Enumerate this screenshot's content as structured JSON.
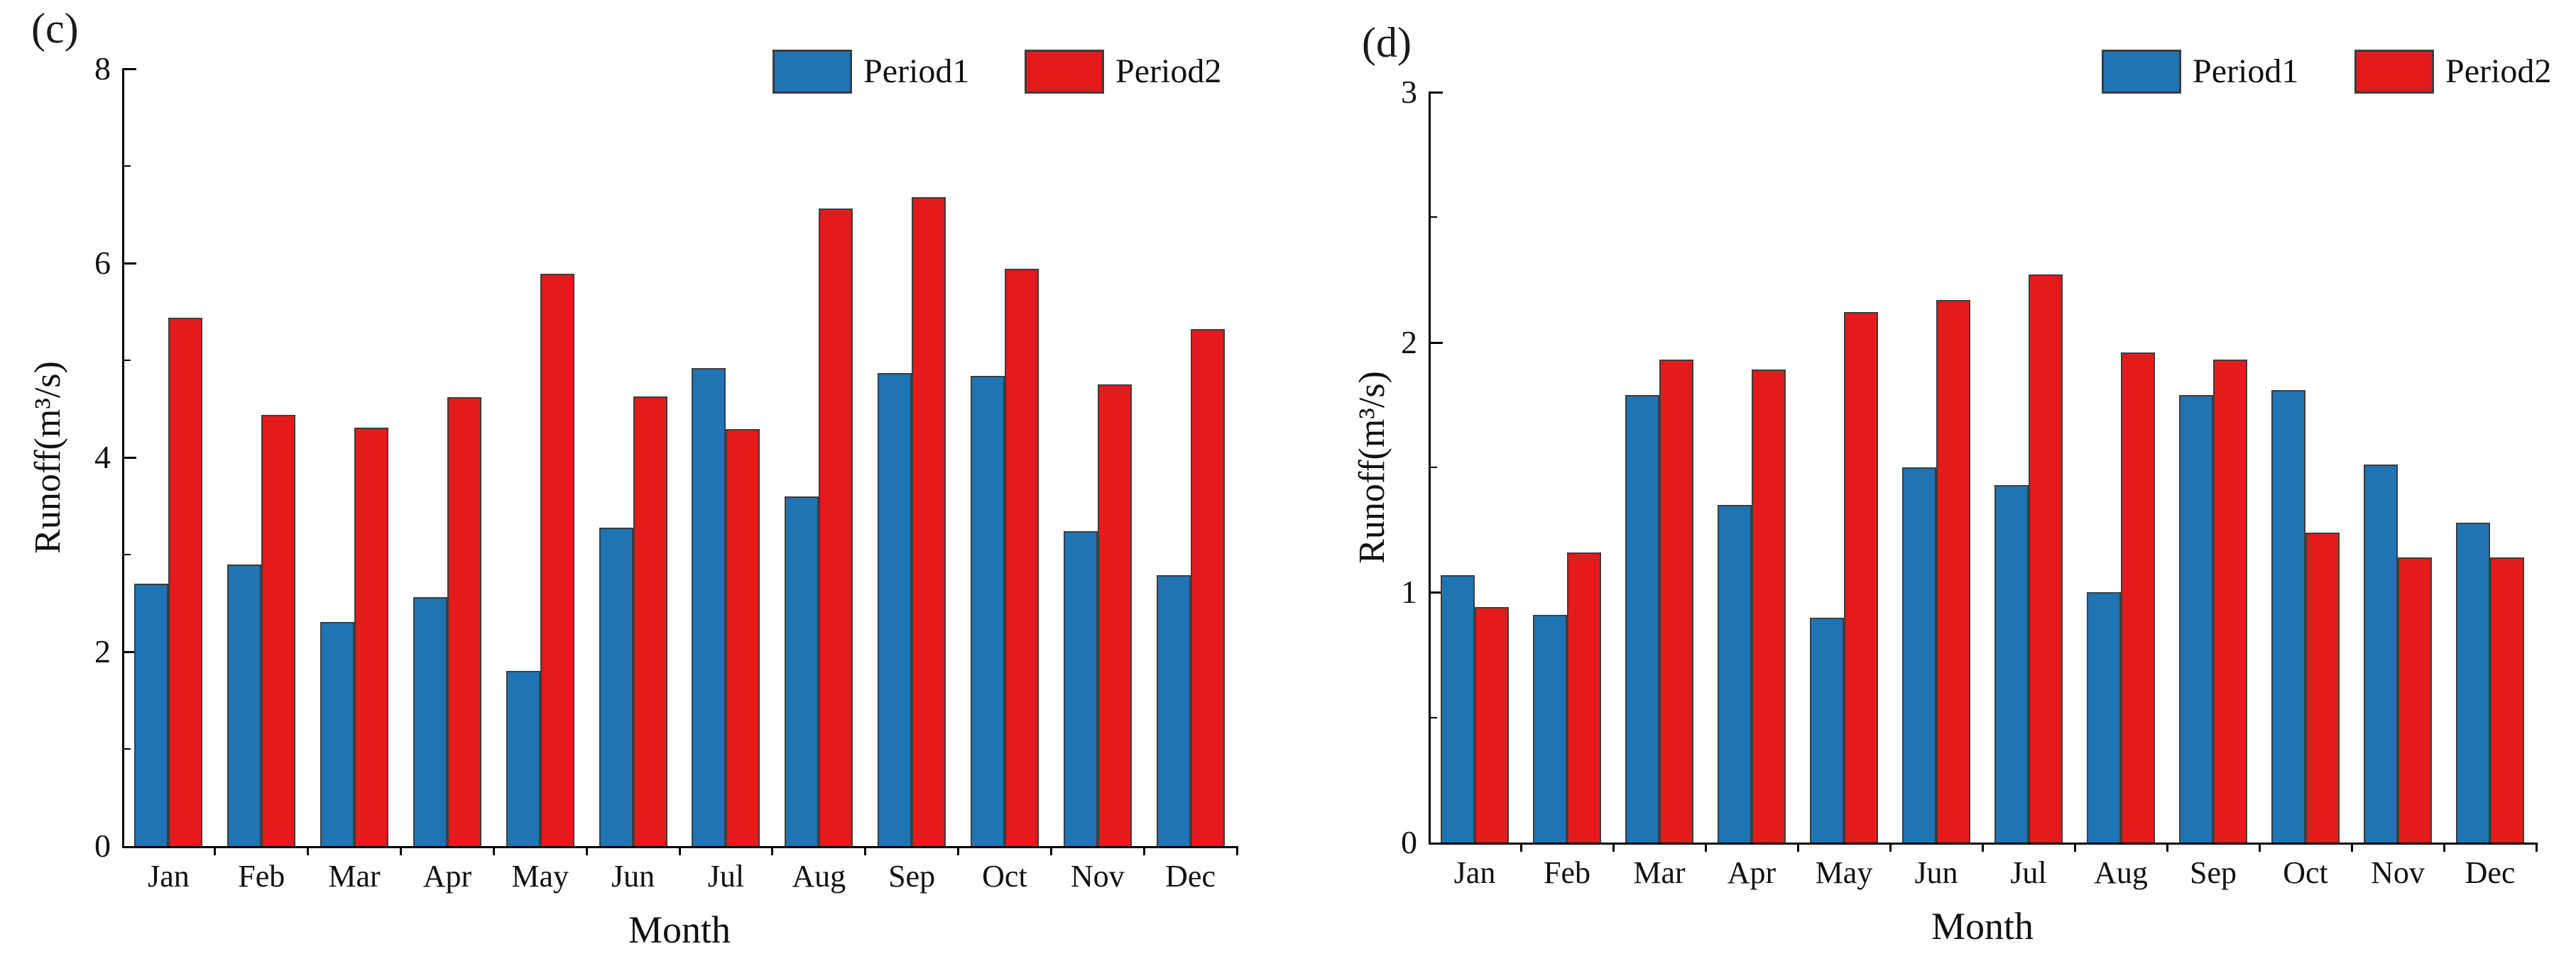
{
  "colors": {
    "period1_fill": "#1F74B4",
    "period2_fill": "#E41A1C",
    "bar_edge": "#3D3D3D",
    "axis": "#000000"
  },
  "panels": [
    {
      "tag": "(c)",
      "ylabel": "Runoff(m³/s)",
      "xlabel": "Month",
      "y_major_ticks": [
        0,
        2,
        4,
        6,
        8
      ],
      "legend": [
        {
          "label": "Period1"
        },
        {
          "label": "Period2"
        }
      ]
    },
    {
      "tag": "(d)",
      "ylabel": "Runoff(m³/s)",
      "xlabel": "Month",
      "y_major_ticks": [
        0,
        1,
        2,
        3
      ],
      "legend": [
        {
          "label": "Period1"
        },
        {
          "label": "Period2"
        }
      ]
    }
  ],
  "chart_data": [
    {
      "type": "bar",
      "panel": "(c)",
      "title": "",
      "xlabel": "Month",
      "ylabel": "Runoff(m³/s)",
      "ylim": [
        0,
        8
      ],
      "y_major_ticks": [
        0,
        2,
        4,
        6,
        8
      ],
      "grid": false,
      "legend_position": "top-right",
      "categories": [
        "Jan",
        "Feb",
        "Mar",
        "Apr",
        "May",
        "Jun",
        "Jul",
        "Aug",
        "Sep",
        "Oct",
        "Nov",
        "Dec"
      ],
      "series": [
        {
          "name": "Period1",
          "color": "#1F74B4",
          "values": [
            2.7,
            2.9,
            2.31,
            2.56,
            1.8,
            3.28,
            4.92,
            3.6,
            4.87,
            4.84,
            3.24,
            2.79
          ]
        },
        {
          "name": "Period2",
          "color": "#E41A1C",
          "values": [
            5.44,
            4.44,
            4.31,
            4.62,
            5.89,
            4.63,
            4.29,
            6.56,
            6.68,
            5.94,
            4.75,
            5.32
          ]
        }
      ]
    },
    {
      "type": "bar",
      "panel": "(d)",
      "title": "",
      "xlabel": "Month",
      "ylabel": "Runoff(m³/s)",
      "ylim": [
        0,
        3
      ],
      "y_major_ticks": [
        0,
        1,
        2,
        3
      ],
      "grid": false,
      "legend_position": "top-right",
      "categories": [
        "Jan",
        "Feb",
        "Mar",
        "Apr",
        "May",
        "Jun",
        "Jul",
        "Aug",
        "Sep",
        "Oct",
        "Nov",
        "Dec"
      ],
      "series": [
        {
          "name": "Period1",
          "color": "#1F74B4",
          "values": [
            1.07,
            0.91,
            1.79,
            1.35,
            0.9,
            1.5,
            1.43,
            1.0,
            1.79,
            1.81,
            1.51,
            1.28
          ]
        },
        {
          "name": "Period2",
          "color": "#E41A1C",
          "values": [
            0.94,
            1.16,
            1.93,
            1.89,
            2.12,
            2.17,
            2.27,
            1.96,
            1.93,
            1.24,
            1.14,
            1.14
          ]
        }
      ]
    }
  ]
}
